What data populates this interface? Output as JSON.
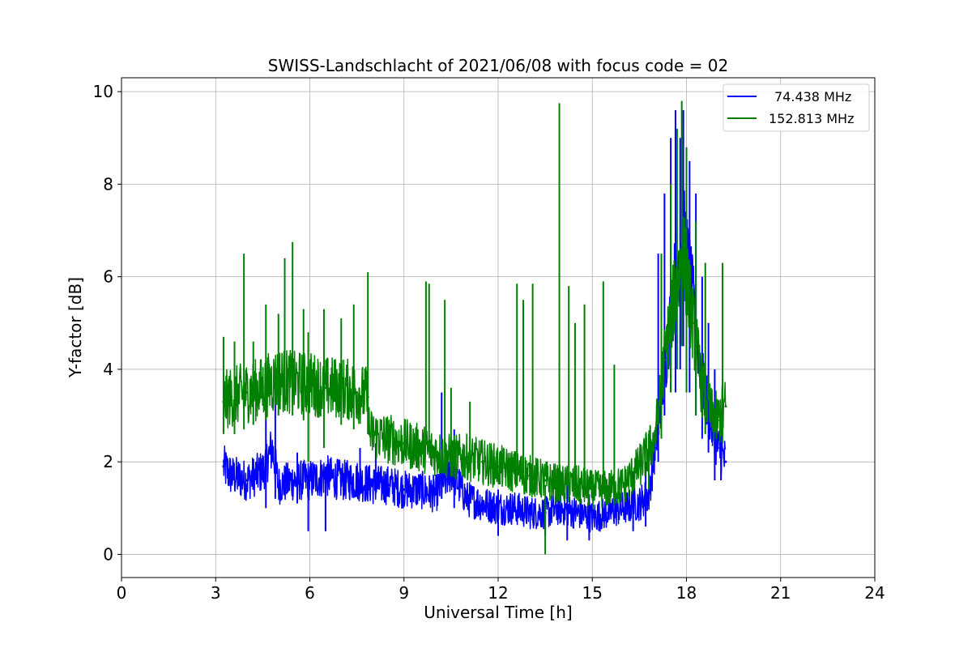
{
  "chart_data": {
    "type": "line",
    "title": "SWISS-Landschlacht of 2021/06/08 with focus code = 02",
    "xlabel": "Universal Time [h]",
    "ylabel": "Y-factor [dB]",
    "xlim": [
      0,
      24
    ],
    "ylim": [
      -0.5,
      10.3
    ],
    "xticks": [
      0,
      3,
      6,
      9,
      12,
      15,
      18,
      21,
      24
    ],
    "yticks": [
      0,
      2,
      4,
      6,
      8,
      10
    ],
    "grid": true,
    "legend_position": "top-right",
    "series": [
      {
        "name": "74.438 MHz",
        "color": "#0000ff",
        "x": [
          3.25,
          3.5,
          4.0,
          4.5,
          4.8,
          5.0,
          5.5,
          6.0,
          6.5,
          7.0,
          7.5,
          8.0,
          8.5,
          9.0,
          9.5,
          10.0,
          10.5,
          11.0,
          11.5,
          12.0,
          12.5,
          13.0,
          13.5,
          14.0,
          14.5,
          15.0,
          15.5,
          16.0,
          16.5,
          16.8,
          17.0,
          17.3,
          17.6,
          17.9,
          18.2,
          18.5,
          18.8,
          19.0,
          19.25
        ],
        "y": [
          1.9,
          1.7,
          1.6,
          1.8,
          2.3,
          1.5,
          1.6,
          1.6,
          1.7,
          1.6,
          1.6,
          1.5,
          1.5,
          1.4,
          1.4,
          1.3,
          1.8,
          1.2,
          1.1,
          1.0,
          1.0,
          0.9,
          0.9,
          1.0,
          0.9,
          0.8,
          0.9,
          1.0,
          1.1,
          1.3,
          2.3,
          4.0,
          5.8,
          7.0,
          5.5,
          3.8,
          2.8,
          2.3,
          2.0
        ],
        "spikes": [
          {
            "x": 4.6,
            "min": 1.0,
            "max": 3.6
          },
          {
            "x": 4.9,
            "min": 1.2,
            "max": 3.8
          },
          {
            "x": 5.6,
            "min": 1.1,
            "max": 2.2
          },
          {
            "x": 5.95,
            "min": 0.5,
            "max": 1.8
          },
          {
            "x": 6.5,
            "min": 0.5,
            "max": 1.9
          },
          {
            "x": 7.6,
            "min": 1.3,
            "max": 2.3
          },
          {
            "x": 8.1,
            "min": 1.4,
            "max": 2.4
          },
          {
            "x": 10.2,
            "min": 1.2,
            "max": 3.5
          },
          {
            "x": 10.6,
            "min": 1.0,
            "max": 2.7
          },
          {
            "x": 12.0,
            "min": 0.4,
            "max": 1.4
          },
          {
            "x": 13.5,
            "min": 0.4,
            "max": 1.2
          },
          {
            "x": 14.2,
            "min": 0.3,
            "max": 1.5
          },
          {
            "x": 14.9,
            "min": 0.3,
            "max": 1.3
          },
          {
            "x": 16.3,
            "min": 0.5,
            "max": 1.8
          },
          {
            "x": 16.7,
            "min": 0.6,
            "max": 2.0
          },
          {
            "x": 17.1,
            "min": 2.0,
            "max": 6.5
          },
          {
            "x": 17.3,
            "min": 3.0,
            "max": 7.8
          },
          {
            "x": 17.5,
            "min": 3.5,
            "max": 9.0
          },
          {
            "x": 17.65,
            "min": 3.5,
            "max": 9.6
          },
          {
            "x": 17.8,
            "min": 4.0,
            "max": 9.0
          },
          {
            "x": 17.9,
            "min": 4.5,
            "max": 9.6
          },
          {
            "x": 18.1,
            "min": 3.5,
            "max": 8.5
          },
          {
            "x": 18.3,
            "min": 3.0,
            "max": 7.8
          },
          {
            "x": 18.5,
            "min": 2.5,
            "max": 6.0
          },
          {
            "x": 18.7,
            "min": 2.2,
            "max": 5.0
          },
          {
            "x": 18.9,
            "min": 1.6,
            "max": 4.0
          },
          {
            "x": 19.1,
            "min": 1.6,
            "max": 3.0
          }
        ]
      },
      {
        "name": "152.813 MHz",
        "color": "#008000",
        "x": [
          3.25,
          3.5,
          4.0,
          4.5,
          5.0,
          5.5,
          6.0,
          6.5,
          7.0,
          7.5,
          7.85,
          7.9,
          8.5,
          9.0,
          9.5,
          10.0,
          10.5,
          11.0,
          11.5,
          12.0,
          12.5,
          13.0,
          13.5,
          14.0,
          14.5,
          15.0,
          15.5,
          16.0,
          16.5,
          17.0,
          17.3,
          17.6,
          17.9,
          18.2,
          18.5,
          18.8,
          19.0,
          19.25
        ],
        "y": [
          3.3,
          3.4,
          3.5,
          3.6,
          3.8,
          3.7,
          3.7,
          3.6,
          3.6,
          3.5,
          3.4,
          2.6,
          2.5,
          2.4,
          2.3,
          2.2,
          2.1,
          2.1,
          2.0,
          1.9,
          1.8,
          1.7,
          1.6,
          1.5,
          1.5,
          1.4,
          1.4,
          1.5,
          1.9,
          2.5,
          4.2,
          5.5,
          6.5,
          5.0,
          3.6,
          3.0,
          2.9,
          3.2
        ],
        "spikes": [
          {
            "x": 3.25,
            "min": 2.6,
            "max": 4.7
          },
          {
            "x": 3.6,
            "min": 2.6,
            "max": 4.6
          },
          {
            "x": 3.9,
            "min": 2.7,
            "max": 6.5
          },
          {
            "x": 4.2,
            "min": 2.8,
            "max": 4.6
          },
          {
            "x": 4.6,
            "min": 2.9,
            "max": 5.4
          },
          {
            "x": 5.0,
            "min": 3.0,
            "max": 5.2
          },
          {
            "x": 5.2,
            "min": 3.1,
            "max": 6.4
          },
          {
            "x": 5.45,
            "min": 3.0,
            "max": 6.75
          },
          {
            "x": 5.8,
            "min": 2.9,
            "max": 5.3
          },
          {
            "x": 5.95,
            "min": 2.0,
            "max": 4.8
          },
          {
            "x": 6.45,
            "min": 2.3,
            "max": 5.3
          },
          {
            "x": 7.0,
            "min": 2.8,
            "max": 5.1
          },
          {
            "x": 7.4,
            "min": 2.7,
            "max": 5.4
          },
          {
            "x": 7.85,
            "min": 2.6,
            "max": 6.1
          },
          {
            "x": 9.7,
            "min": 2.4,
            "max": 5.9
          },
          {
            "x": 9.8,
            "min": 2.4,
            "max": 5.85
          },
          {
            "x": 10.3,
            "min": 2.2,
            "max": 5.5
          },
          {
            "x": 10.5,
            "min": 2.1,
            "max": 3.6
          },
          {
            "x": 11.1,
            "min": 2.0,
            "max": 3.3
          },
          {
            "x": 12.6,
            "min": 1.7,
            "max": 5.85
          },
          {
            "x": 12.8,
            "min": 1.7,
            "max": 5.5
          },
          {
            "x": 13.1,
            "min": 1.6,
            "max": 5.85
          },
          {
            "x": 13.5,
            "min": 0.0,
            "max": 1.5
          },
          {
            "x": 13.95,
            "min": 1.4,
            "max": 9.75
          },
          {
            "x": 14.25,
            "min": 1.4,
            "max": 5.8
          },
          {
            "x": 14.45,
            "min": 1.4,
            "max": 5.0
          },
          {
            "x": 14.75,
            "min": 1.3,
            "max": 5.4
          },
          {
            "x": 15.35,
            "min": 1.3,
            "max": 5.9
          },
          {
            "x": 15.7,
            "min": 1.3,
            "max": 4.1
          },
          {
            "x": 16.8,
            "min": 1.4,
            "max": 2.6
          },
          {
            "x": 17.2,
            "min": 2.5,
            "max": 6.5
          },
          {
            "x": 17.5,
            "min": 3.5,
            "max": 8.0
          },
          {
            "x": 17.7,
            "min": 4.0,
            "max": 9.2
          },
          {
            "x": 17.85,
            "min": 4.5,
            "max": 9.8
          },
          {
            "x": 18.0,
            "min": 3.5,
            "max": 8.8
          },
          {
            "x": 18.3,
            "min": 3.0,
            "max": 7.2
          },
          {
            "x": 18.6,
            "min": 2.6,
            "max": 6.3
          },
          {
            "x": 19.15,
            "min": 2.4,
            "max": 6.3
          }
        ]
      }
    ]
  }
}
